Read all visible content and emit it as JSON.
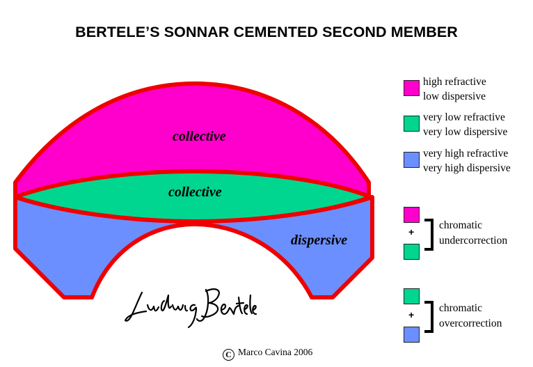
{
  "title": "BERTELE’S SONNAR CEMENTED SECOND MEMBER",
  "colors": {
    "high_refractive_low_dispersive": "#ff00cc",
    "very_low_refractive_very_low_dispersive": "#00d68f",
    "very_high_refractive_very_high_dispersive": "#6b8fff",
    "lens_outline": "#ee0000"
  },
  "lens": {
    "top_label": "collective",
    "middle_label": "collective",
    "bottom_label": "dispersive"
  },
  "legend": [
    {
      "line1": "high refractive",
      "line2": "low dispersive",
      "color_key": "high_refractive_low_dispersive"
    },
    {
      "line1": "very low refractive",
      "line2": "very low dispersive",
      "color_key": "very_low_refractive_very_low_dispersive"
    },
    {
      "line1": "very high refractive",
      "line2": "very high dispersive",
      "color_key": "very_high_refractive_very_high_dispersive"
    }
  ],
  "combinations": [
    {
      "plus": "+",
      "line1": "chromatic",
      "line2": "undercorrection"
    },
    {
      "plus": "+",
      "line1": "chromatic",
      "line2": "overcorrection"
    }
  ],
  "signature": "Ludwig Bertele",
  "copyright_symbol": "C",
  "copyright": "Marco Cavina 2006"
}
